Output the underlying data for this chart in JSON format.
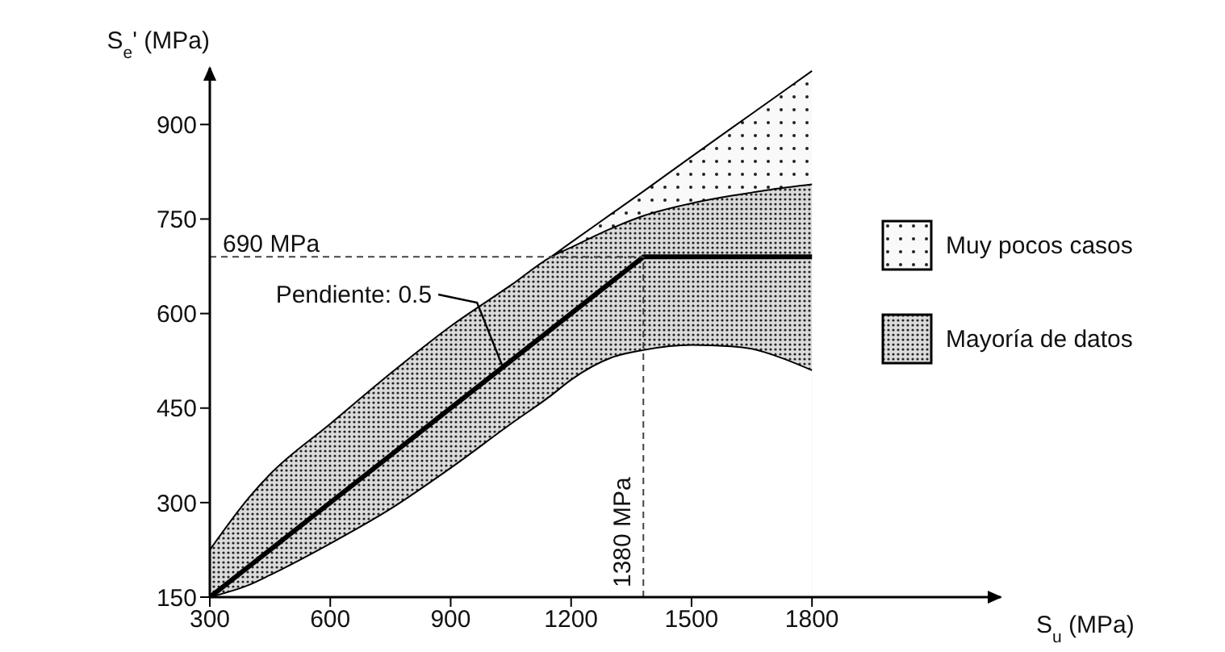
{
  "chart_data": {
    "type": "area",
    "xlabel": "S$_{u}$ (MPa)",
    "ylabel": "S$_{e}$' (MPa)",
    "xlim": [
      300,
      2270
    ],
    "ylim": [
      150,
      990
    ],
    "xticks": [
      300,
      600,
      900,
      1200,
      1500,
      1800
    ],
    "yticks": [
      150,
      300,
      450,
      600,
      750,
      900
    ],
    "legend": "right",
    "series": [
      {
        "name": "Muy pocos casos",
        "color": "#f4f4f4",
        "x": [
          1150,
          1200,
          1300,
          1380,
          1500,
          1650,
          1800
        ],
        "values": [
          690,
          713,
          758,
          794,
          849,
          917,
          985
        ]
      },
      {
        "name": "Mayoría de datos",
        "color": "#bdbdbd",
        "x": [
          300,
          400,
          450,
          600,
          750,
          900,
          1050,
          1150,
          1200,
          1300,
          1380,
          1500,
          1600,
          1650,
          1700,
          1800
        ],
        "values": [
          225,
          310,
          345,
          425,
          505,
          580,
          645,
          690,
          705,
          735,
          755,
          775,
          787,
          792,
          797,
          805
        ]
      },
      {
        "color": "#ffffff",
        "x": [
          300,
          400,
          450,
          600,
          750,
          900,
          1050,
          1150,
          1200,
          1300,
          1380,
          1500,
          1600,
          1650,
          1700,
          1800
        ],
        "values": [
          150,
          170,
          185,
          235,
          290,
          355,
          425,
          470,
          495,
          530,
          542,
          550,
          548,
          544,
          535,
          510
        ]
      },
      {
        "type": "line",
        "color": "#000000",
        "x": [
          300,
          1380,
          1800
        ],
        "values": [
          150,
          690,
          690
        ]
      }
    ],
    "ref_lines": [
      {
        "axis": "y",
        "value": 690,
        "label": "690 MPa",
        "line_style": "dashed"
      },
      {
        "axis": "x",
        "value": 1380,
        "label": "1380 MPa",
        "line_style": "dashed"
      }
    ],
    "annotations": [
      {
        "text": "Pendiente: 0.5",
        "x": 1030,
        "y": 515
      }
    ]
  }
}
